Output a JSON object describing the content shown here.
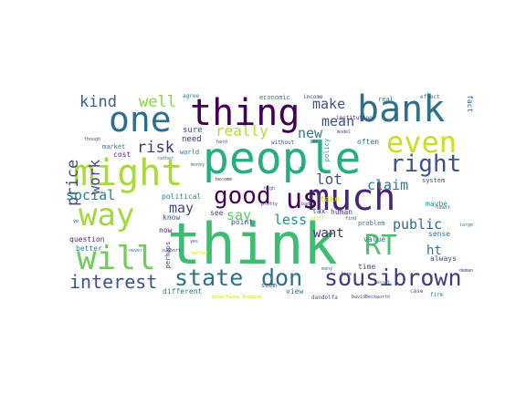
{
  "cloud": {
    "words": [
      {
        "text": "think",
        "color": "#3fbc73"
      },
      {
        "text": "people",
        "color": "#26ad81"
      },
      {
        "text": "bank",
        "color": "#2d708e"
      },
      {
        "text": "thing",
        "color": "#440154"
      },
      {
        "text": "one",
        "color": "#2f6c8e"
      },
      {
        "text": "might",
        "color": "#a8db34"
      },
      {
        "text": "much",
        "color": "#482575"
      },
      {
        "text": "will",
        "color": "#6ece58"
      },
      {
        "text": "way",
        "color": "#a2da37"
      },
      {
        "text": "even",
        "color": "#c8e020"
      },
      {
        "text": "us",
        "color": "#440154"
      },
      {
        "text": "RT",
        "color": "#4ac16d"
      },
      {
        "text": "right",
        "color": "#3b528b"
      },
      {
        "text": "good",
        "color": "#440154"
      },
      {
        "text": "state",
        "color": "#2d708e"
      },
      {
        "text": "don",
        "color": "#2d708e"
      },
      {
        "text": "sousibrown",
        "color": "#453781"
      },
      {
        "text": "interest",
        "color": "#3b528b"
      },
      {
        "text": "kind",
        "color": "#33638d"
      },
      {
        "text": "well",
        "color": "#86d549"
      },
      {
        "text": "make",
        "color": "#3b528b"
      },
      {
        "text": "mean",
        "color": "#3b528b"
      },
      {
        "text": "new",
        "color": "#2a788e"
      },
      {
        "text": "lot",
        "color": "#3b528b"
      },
      {
        "text": "claim",
        "color": "#2a788e"
      },
      {
        "text": "really",
        "color": "#b5de2b"
      },
      {
        "text": "risk",
        "color": "#46337e"
      },
      {
        "text": "price",
        "color": "#404688"
      },
      {
        "text": "work",
        "color": "#3e4989"
      },
      {
        "text": "social",
        "color": "#287c8e"
      },
      {
        "text": "may",
        "color": "#3e4989"
      },
      {
        "text": "say",
        "color": "#5ec962"
      },
      {
        "text": "less",
        "color": "#21918c"
      },
      {
        "text": "want",
        "color": "#472d7b"
      },
      {
        "text": "public",
        "color": "#31688e"
      },
      {
        "text": "ht",
        "color": "#2c728e"
      },
      {
        "text": "need",
        "color": "#482878"
      },
      {
        "text": "sure",
        "color": "#3b528b"
      },
      {
        "text": "market",
        "color": "#2a788e"
      },
      {
        "text": "cost",
        "color": "#472a7a"
      },
      {
        "text": "world",
        "color": "#2a788e"
      },
      {
        "text": "political",
        "color": "#25848e"
      },
      {
        "text": "know",
        "color": "#3b528b"
      },
      {
        "text": "now",
        "color": "#481b6d"
      },
      {
        "text": "see",
        "color": "#404688"
      },
      {
        "text": "point",
        "color": "#404688"
      },
      {
        "text": "seem",
        "color": "#3b528b"
      },
      {
        "text": "view",
        "color": "#31688e"
      },
      {
        "text": "question",
        "color": "#472d7b"
      },
      {
        "text": "better",
        "color": "#2a788e"
      },
      {
        "text": "different",
        "color": "#2a788e"
      },
      {
        "text": "time",
        "color": "#3b528b"
      },
      {
        "text": "value",
        "color": "#2c728e"
      },
      {
        "text": "human",
        "color": "#404688"
      },
      {
        "text": "tax",
        "color": "#3e4989"
      },
      {
        "text": "take",
        "color": "#d0e11c"
      },
      {
        "text": "policy",
        "color": "#1f998a"
      },
      {
        "text": "maybe",
        "color": "#1f968b"
      },
      {
        "text": "sense",
        "color": "#2a788e"
      },
      {
        "text": "always",
        "color": "#3e4989"
      },
      {
        "text": "problem",
        "color": "#2a788e"
      },
      {
        "text": "often",
        "color": "#2a788e"
      },
      {
        "text": "fact",
        "color": "#31688e"
      },
      {
        "text": "system",
        "color": "#3b528b"
      },
      {
        "text": "economic",
        "color": "#2a788e"
      },
      {
        "text": "income",
        "color": "#404688"
      },
      {
        "text": "real",
        "color": "#2a788e"
      },
      {
        "text": "effect",
        "color": "#2a788e"
      },
      {
        "text": "agree",
        "color": "#2a788e"
      },
      {
        "text": "institution",
        "color": "#472d7b"
      },
      {
        "text": "model",
        "color": "#404688"
      },
      {
        "text": "though",
        "color": "#3b528b"
      },
      {
        "text": "hard",
        "color": "#3b528b"
      },
      {
        "text": "without",
        "color": "#3b528b"
      },
      {
        "text": "let",
        "color": "#3b528b"
      },
      {
        "text": "rather",
        "color": "#2a788e"
      },
      {
        "text": "become",
        "color": "#472d7b"
      },
      {
        "text": "pretty",
        "color": "#472d7b"
      },
      {
        "text": "bad",
        "color": "#3b528b"
      },
      {
        "text": "still",
        "color": "#d8e219"
      },
      {
        "text": "find",
        "color": "#3b528b"
      },
      {
        "text": "least",
        "color": "#404688"
      },
      {
        "text": "large",
        "color": "#2a788e"
      },
      {
        "text": "demand",
        "color": "#472d7b"
      },
      {
        "text": "firm",
        "color": "#2a788e"
      },
      {
        "text": "case",
        "color": "#3b528b"
      },
      {
        "text": "many",
        "color": "#2a788e"
      },
      {
        "text": "perhaps",
        "color": "#404688"
      },
      {
        "text": "support",
        "color": "#3b528b"
      },
      {
        "text": "yes",
        "color": "#3b528b"
      },
      {
        "text": "matter",
        "color": "#d8e219"
      },
      {
        "text": "never",
        "color": "#2a788e"
      },
      {
        "text": "ve",
        "color": "#3b528b"
      },
      {
        "text": "money",
        "color": "#2a788e"
      },
      {
        "text": "dandolfa",
        "color": "#3b528b"
      },
      {
        "text": "DavidBeckworth",
        "color": "#3b528b"
      },
      {
        "text": "benarfanna Insbpnd",
        "color": "#d8e219"
      },
      {
        "text": "asset",
        "color": "#2a788e"
      },
      {
        "text": "firm",
        "color": "#3b528b"
      },
      {
        "text": "high",
        "color": "#3b528b"
      },
      {
        "text": "go",
        "color": "#2a788e"
      }
    ]
  }
}
